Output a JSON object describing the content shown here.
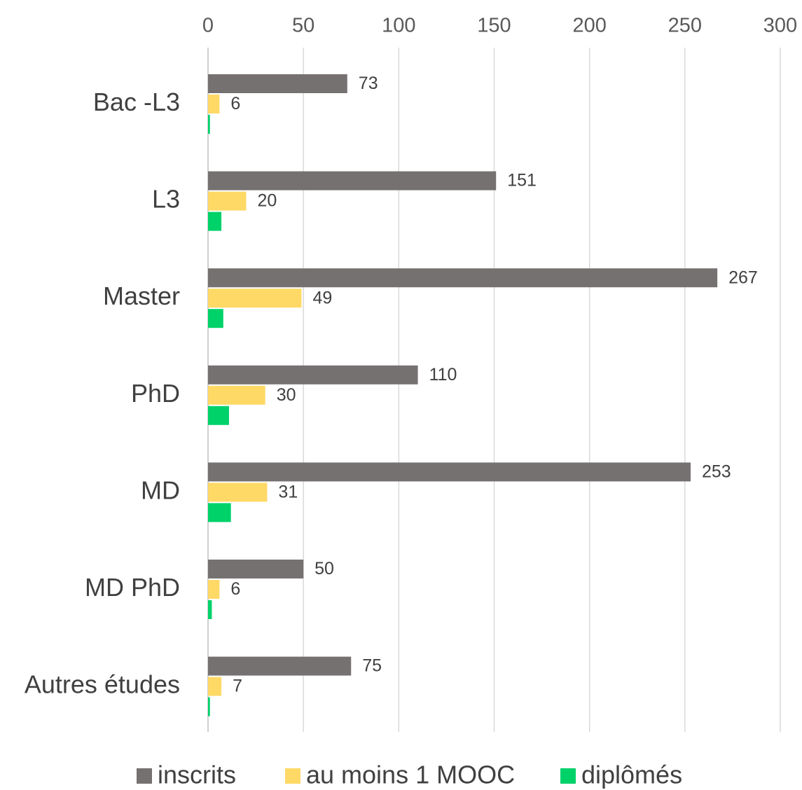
{
  "chart_data": {
    "type": "bar",
    "orientation": "horizontal",
    "categories": [
      "Bac -L3",
      "L3",
      "Master",
      "PhD",
      "MD",
      "MD PhD",
      "Autres études"
    ],
    "series": [
      {
        "name": "inscrits",
        "values": [
          73,
          151,
          267,
          110,
          253,
          50,
          75
        ],
        "color": "#767171",
        "show_labels": true
      },
      {
        "name": "au moins 1 MOOC",
        "values": [
          6,
          20,
          49,
          30,
          31,
          6,
          7
        ],
        "color": "#FFD966",
        "show_labels": true
      },
      {
        "name": "diplômés",
        "values": [
          1,
          7,
          8,
          11,
          12,
          2,
          1
        ],
        "color": "#00D26A",
        "show_labels": false
      }
    ],
    "xlim": [
      0,
      300
    ],
    "xticks": [
      "0",
      "50",
      "100",
      "150",
      "200",
      "250",
      "300"
    ],
    "xaxis_position": "top",
    "grid": true,
    "legend_position": "bottom"
  }
}
